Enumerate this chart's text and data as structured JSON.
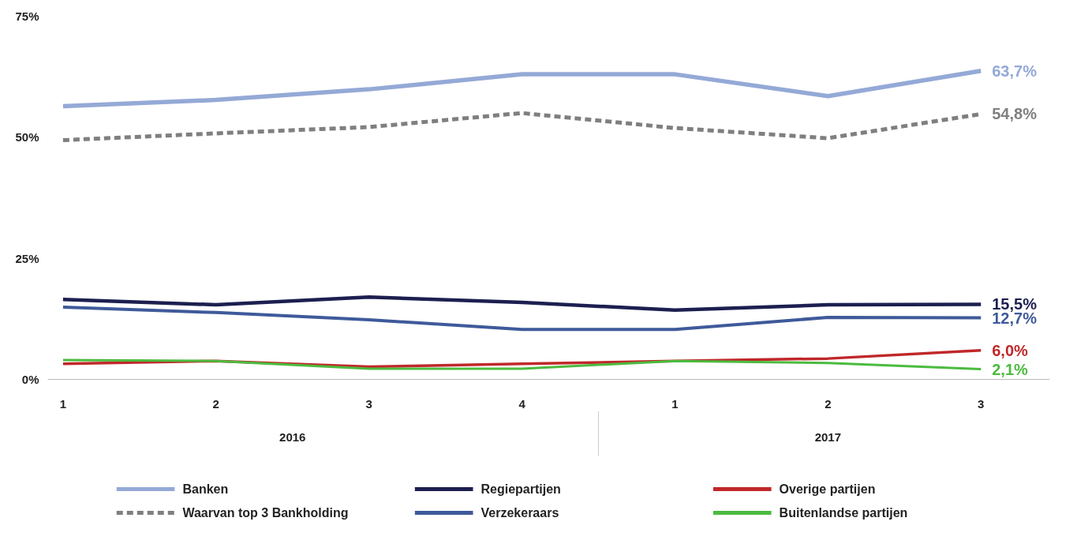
{
  "chart_data": {
    "type": "line",
    "categories": [
      "1",
      "2",
      "3",
      "4",
      "1",
      "2",
      "3"
    ],
    "ylim": [
      0,
      75
    ],
    "yticks": [
      {
        "value": 0,
        "label": "0%"
      },
      {
        "value": 25,
        "label": "25%"
      },
      {
        "value": 50,
        "label": "50%"
      },
      {
        "value": 75,
        "label": "75%"
      }
    ],
    "grid": false,
    "legend": "bottom",
    "marker": "none",
    "line_style": "solid",
    "annotations": [
      "2016",
      "2017"
    ],
    "series": [
      {
        "name": "Banken",
        "color": "#94a9d6",
        "values": [
          56.4,
          57.7,
          59.9,
          63.0,
          63.0,
          58.5,
          63.7
        ],
        "value_labels": [
          null,
          null,
          null,
          null,
          null,
          null,
          "63,7%"
        ]
      },
      {
        "name": "Waarvan top 3 Bankholding",
        "color": "#7f7f7f",
        "line_style": "dashed",
        "values": [
          49.4,
          50.8,
          52.1,
          55.0,
          51.9,
          49.8,
          54.8
        ],
        "value_labels": [
          null,
          null,
          null,
          null,
          null,
          null,
          "54,8%"
        ]
      },
      {
        "name": "Regiepartijen",
        "color": "#1c1f4f",
        "values": [
          16.5,
          15.4,
          17.0,
          15.9,
          14.3,
          15.4,
          15.5
        ],
        "value_labels": [
          null,
          null,
          null,
          null,
          null,
          null,
          "15,5%"
        ]
      },
      {
        "name": "Verzekeraars",
        "color": "#3f5a9a",
        "values": [
          14.9,
          13.8,
          12.3,
          10.3,
          10.3,
          12.8,
          12.7
        ],
        "value_labels": [
          null,
          null,
          null,
          null,
          null,
          null,
          "12,7%"
        ]
      },
      {
        "name": "Overige partijen",
        "color": "#c0282a",
        "values": [
          3.2,
          3.8,
          2.6,
          3.2,
          3.8,
          4.3,
          6.0
        ],
        "value_labels": [
          null,
          null,
          null,
          null,
          null,
          null,
          "6,0%"
        ]
      },
      {
        "name": "Buitenlandse partijen",
        "color": "#4cbb3f",
        "values": [
          4.0,
          3.8,
          2.2,
          2.2,
          3.8,
          3.4,
          2.1
        ],
        "value_labels": [
          null,
          null,
          null,
          null,
          null,
          null,
          "2,1%"
        ]
      }
    ]
  }
}
